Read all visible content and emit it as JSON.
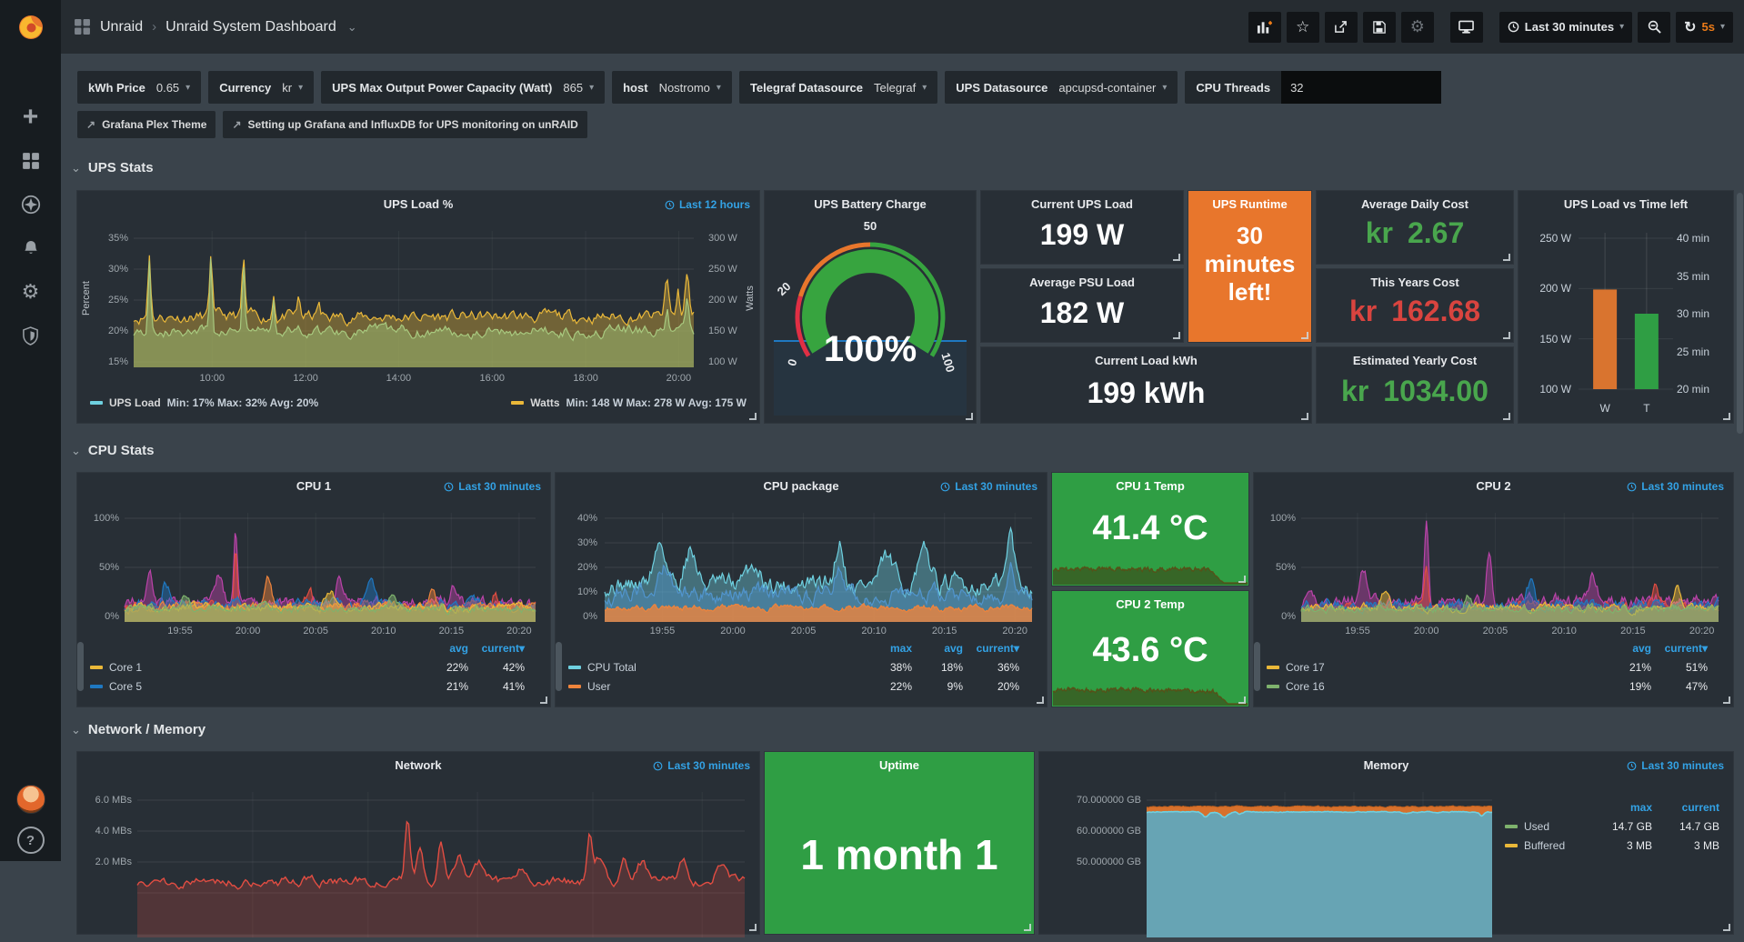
{
  "icons": {
    "caret_down": "▾",
    "chevron_down": "⌄",
    "breadcrumb_sep": "›",
    "star": "☆",
    "gear": "⚙",
    "refresh": "↻",
    "plus": "+",
    "help": "?",
    "external_link": "↗"
  },
  "sidebar": {
    "items": [
      "create",
      "dashboards",
      "explore",
      "alerting",
      "configuration",
      "server-admin"
    ]
  },
  "nav": {
    "app": "Unraid",
    "dashboard": "Unraid System Dashboard",
    "time_range": "Last 30 minutes",
    "refresh_interval": "5s"
  },
  "variables": [
    {
      "label": "kWh Price",
      "value": "0.65"
    },
    {
      "label": "Currency",
      "value": "kr"
    },
    {
      "label": "UPS Max Output Power Capacity (Watt)",
      "value": "865"
    },
    {
      "label": "host",
      "value": "Nostromo"
    },
    {
      "label": "Telegraf Datasource",
      "value": "Telegraf"
    },
    {
      "label": "UPS Datasource",
      "value": "apcupsd-container"
    },
    {
      "label": "CPU Threads",
      "value": "32"
    }
  ],
  "links": [
    {
      "label": "Grafana Plex Theme"
    },
    {
      "label": "Setting up Grafana and InfluxDB for UPS monitoring on unRAID"
    }
  ],
  "sections": [
    {
      "title": "UPS Stats"
    },
    {
      "title": "CPU Stats"
    },
    {
      "title": "Network / Memory"
    }
  ],
  "stats": {
    "current_ups_load": {
      "title": "Current UPS Load",
      "value": "199 W"
    },
    "average_psu_load": {
      "title": "Average PSU Load",
      "value": "182 W"
    },
    "current_load_kwh": {
      "title": "Current Load kWh",
      "value": "199 kWh"
    },
    "ups_runtime": {
      "title": "UPS Runtime",
      "value": "30 minutes left!",
      "bg": "#e8762c"
    },
    "average_daily_cost": {
      "title": "Average Daily Cost",
      "currency": "kr",
      "value": "2.67",
      "color": "#49a64d"
    },
    "this_years_cost": {
      "title": "This Years Cost",
      "currency": "kr",
      "value": "162.68",
      "color": "#d9443f"
    },
    "estimated_yearly_cost": {
      "title": "Estimated Yearly Cost",
      "currency": "kr",
      "value": "1034.00",
      "color": "#49a64d"
    },
    "cpu1_temp": {
      "title": "CPU 1 Temp",
      "value": "41.4 °C",
      "bg": "#2f9e44"
    },
    "cpu2_temp": {
      "title": "CPU 2 Temp",
      "value": "43.6 °C",
      "bg": "#2f9e44"
    },
    "uptime": {
      "title": "Uptime",
      "value": "1 month 1",
      "bg": "#2f9e44"
    }
  },
  "chart_data": [
    {
      "id": "ups_load",
      "type": "line",
      "title": "UPS Load %",
      "time_range": "Last 12 hours",
      "ylabel_left": "Percent",
      "ylabel_right": "Watts",
      "yticks_left": [
        "35%",
        "30%",
        "25%",
        "20%",
        "15%"
      ],
      "yticks_right": [
        "300 W",
        "250 W",
        "200 W",
        "150 W",
        "100 W"
      ],
      "xticks": [
        "10:00",
        "12:00",
        "14:00",
        "16:00",
        "18:00",
        "20:00"
      ],
      "series": [
        {
          "name": "UPS Load",
          "color": "#6ED0E0",
          "stats": "Min: 17% Max: 32% Avg: 20%"
        },
        {
          "name": "Watts",
          "color": "#EAB839",
          "stats": "Min: 148 W Max: 278 W Avg: 175 W"
        }
      ]
    },
    {
      "id": "ups_battery",
      "type": "gauge",
      "title": "UPS Battery Charge",
      "value": 100,
      "display": "100%",
      "ticks": [
        "0",
        "20",
        "50",
        "100"
      ],
      "arc_color": "#37a43f",
      "threshold_colors": [
        "#e02f44",
        "#e8762c",
        "#37a43f"
      ]
    },
    {
      "id": "ups_bar",
      "type": "bar",
      "title": "UPS Load vs Time left",
      "categories": [
        "W",
        "T"
      ],
      "values": [
        {
          "label": "W",
          "value": 199,
          "unit": "W",
          "color": "#d9742f"
        },
        {
          "label": "T",
          "value": 30,
          "unit": "min",
          "color": "#2f9e44"
        }
      ],
      "yticks_left": [
        "250 W",
        "200 W",
        "150 W",
        "100 W"
      ],
      "yticks_right": [
        "40 min",
        "35 min",
        "30 min",
        "25 min",
        "20 min"
      ]
    },
    {
      "id": "cpu1",
      "type": "area",
      "title": "CPU 1",
      "time_range": "Last 30 minutes",
      "yticks": [
        "100%",
        "50%",
        "0%"
      ],
      "xticks": [
        "19:55",
        "20:00",
        "20:05",
        "20:10",
        "20:15",
        "20:20"
      ],
      "legend": {
        "cols": [
          "avg",
          "current"
        ],
        "rows": [
          {
            "name": "Core 1",
            "color": "#EAB839",
            "values": [
              "22%",
              "42%"
            ]
          },
          {
            "name": "Core 5",
            "color": "#1F78C1",
            "values": [
              "21%",
              "41%"
            ]
          }
        ]
      }
    },
    {
      "id": "cpu_package",
      "type": "area",
      "title": "CPU package",
      "time_range": "Last 30 minutes",
      "yticks": [
        "40%",
        "30%",
        "20%",
        "10%",
        "0%"
      ],
      "xticks": [
        "19:55",
        "20:00",
        "20:05",
        "20:10",
        "20:15",
        "20:20"
      ],
      "legend": {
        "cols": [
          "max",
          "avg",
          "current"
        ],
        "rows": [
          {
            "name": "CPU Total",
            "color": "#6ED0E0",
            "values": [
              "38%",
              "18%",
              "36%"
            ]
          },
          {
            "name": "User",
            "color": "#EF843C",
            "values": [
              "22%",
              "9%",
              "20%"
            ]
          }
        ]
      }
    },
    {
      "id": "cpu2",
      "type": "area",
      "title": "CPU 2",
      "time_range": "Last 30 minutes",
      "yticks": [
        "100%",
        "50%",
        "0%"
      ],
      "xticks": [
        "19:55",
        "20:00",
        "20:05",
        "20:10",
        "20:15",
        "20:20"
      ],
      "legend": {
        "cols": [
          "avg",
          "current"
        ],
        "rows": [
          {
            "name": "Core 17",
            "color": "#EAB839",
            "values": [
              "21%",
              "51%"
            ]
          },
          {
            "name": "Core 16",
            "color": "#7EB26D",
            "values": [
              "19%",
              "47%"
            ]
          }
        ]
      }
    },
    {
      "id": "network",
      "type": "line",
      "title": "Network",
      "time_range": "Last 30 minutes",
      "yticks": [
        "6.0 MBs",
        "4.0 MBs",
        "2.0 MBs"
      ],
      "series": [
        {
          "name": "Network",
          "color": "#E24D42"
        }
      ]
    },
    {
      "id": "memory",
      "type": "area",
      "title": "Memory",
      "time_range": "Last 30 minutes",
      "yticks": [
        "70.000000 GB",
        "60.000000 GB",
        "50.000000 GB"
      ],
      "legend": {
        "cols": [
          "max",
          "current"
        ],
        "rows": [
          {
            "name": "Used",
            "color": "#7EB26D",
            "values": [
              "14.7 GB",
              "14.7 GB"
            ]
          },
          {
            "name": "Buffered",
            "color": "#EAB839",
            "values": [
              "3 MB",
              "3 MB"
            ]
          }
        ]
      }
    }
  ]
}
